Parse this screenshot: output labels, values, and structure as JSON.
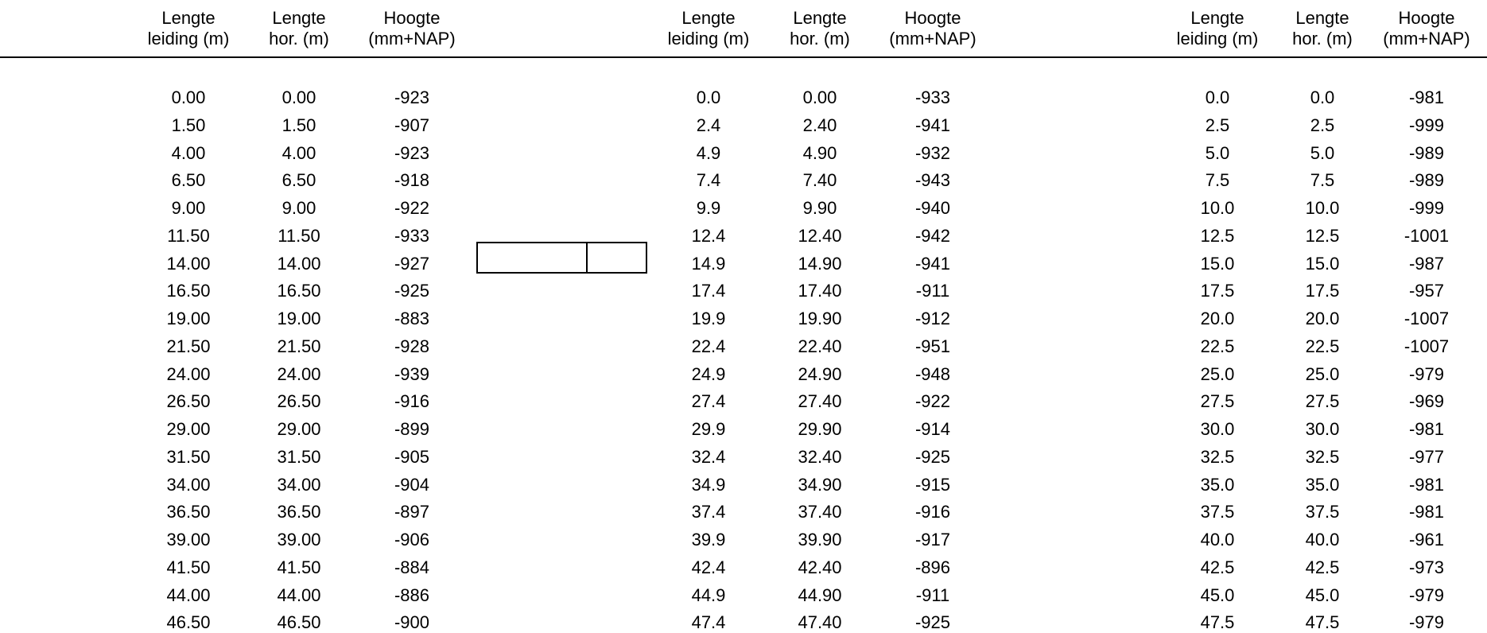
{
  "groups": [
    {
      "headers": [
        {
          "line1": "Lengte",
          "line2": "leiding (m)"
        },
        {
          "line1": "Lengte",
          "line2": "hor. (m)"
        },
        {
          "line1": "Hoogte",
          "line2": "(mm+NAP)"
        }
      ],
      "rows": [
        [
          "0.00",
          "0.00",
          "-923"
        ],
        [
          "1.50",
          "1.50",
          "-907"
        ],
        [
          "4.00",
          "4.00",
          "-923"
        ],
        [
          "6.50",
          "6.50",
          "-918"
        ],
        [
          "9.00",
          "9.00",
          "-922"
        ],
        [
          "11.50",
          "11.50",
          "-933"
        ],
        [
          "14.00",
          "14.00",
          "-927"
        ],
        [
          "16.50",
          "16.50",
          "-925"
        ],
        [
          "19.00",
          "19.00",
          "-883"
        ],
        [
          "21.50",
          "21.50",
          "-928"
        ],
        [
          "24.00",
          "24.00",
          "-939"
        ],
        [
          "26.50",
          "26.50",
          "-916"
        ],
        [
          "29.00",
          "29.00",
          "-899"
        ],
        [
          "31.50",
          "31.50",
          "-905"
        ],
        [
          "34.00",
          "34.00",
          "-904"
        ],
        [
          "36.50",
          "36.50",
          "-897"
        ],
        [
          "39.00",
          "39.00",
          "-906"
        ],
        [
          "41.50",
          "41.50",
          "-884"
        ],
        [
          "44.00",
          "44.00",
          "-886"
        ],
        [
          "46.50",
          "46.50",
          "-900"
        ]
      ]
    },
    {
      "headers": [
        {
          "line1": "Lengte",
          "line2": "leiding (m)"
        },
        {
          "line1": "Lengte",
          "line2": "hor. (m)"
        },
        {
          "line1": "Hoogte",
          "line2": "(mm+NAP)"
        }
      ],
      "rows": [
        [
          "0.0",
          "0.00",
          "-933"
        ],
        [
          "2.4",
          "2.40",
          "-941"
        ],
        [
          "4.9",
          "4.90",
          "-932"
        ],
        [
          "7.4",
          "7.40",
          "-943"
        ],
        [
          "9.9",
          "9.90",
          "-940"
        ],
        [
          "12.4",
          "12.40",
          "-942"
        ],
        [
          "14.9",
          "14.90",
          "-941"
        ],
        [
          "17.4",
          "17.40",
          "-911"
        ],
        [
          "19.9",
          "19.90",
          "-912"
        ],
        [
          "22.4",
          "22.40",
          "-951"
        ],
        [
          "24.9",
          "24.90",
          "-948"
        ],
        [
          "27.4",
          "27.40",
          "-922"
        ],
        [
          "29.9",
          "29.90",
          "-914"
        ],
        [
          "32.4",
          "32.40",
          "-925"
        ],
        [
          "34.9",
          "34.90",
          "-915"
        ],
        [
          "37.4",
          "37.40",
          "-916"
        ],
        [
          "39.9",
          "39.90",
          "-917"
        ],
        [
          "42.4",
          "42.40",
          "-896"
        ],
        [
          "44.9",
          "44.90",
          "-911"
        ],
        [
          "47.4",
          "47.40",
          "-925"
        ]
      ]
    },
    {
      "headers": [
        {
          "line1": "Lengte",
          "line2": "leiding (m)"
        },
        {
          "line1": "Lengte",
          "line2": "hor. (m)"
        },
        {
          "line1": "Hoogte",
          "line2": "(mm+NAP)"
        }
      ],
      "rows": [
        [
          "0.0",
          "0.0",
          "-981"
        ],
        [
          "2.5",
          "2.5",
          "-999"
        ],
        [
          "5.0",
          "5.0",
          "-989"
        ],
        [
          "7.5",
          "7.5",
          "-989"
        ],
        [
          "10.0",
          "10.0",
          "-999"
        ],
        [
          "12.5",
          "12.5",
          "-1001"
        ],
        [
          "15.0",
          "15.0",
          "-987"
        ],
        [
          "17.5",
          "17.5",
          "-957"
        ],
        [
          "20.0",
          "20.0",
          "-1007"
        ],
        [
          "22.5",
          "22.5",
          "-1007"
        ],
        [
          "25.0",
          "25.0",
          "-979"
        ],
        [
          "27.5",
          "27.5",
          "-969"
        ],
        [
          "30.0",
          "30.0",
          "-981"
        ],
        [
          "32.5",
          "32.5",
          "-977"
        ],
        [
          "35.0",
          "35.0",
          "-981"
        ],
        [
          "37.5",
          "37.5",
          "-981"
        ],
        [
          "40.0",
          "40.0",
          "-961"
        ],
        [
          "42.5",
          "42.5",
          "-973"
        ],
        [
          "45.0",
          "45.0",
          "-979"
        ],
        [
          "47.5",
          "47.5",
          "-979"
        ]
      ]
    }
  ]
}
